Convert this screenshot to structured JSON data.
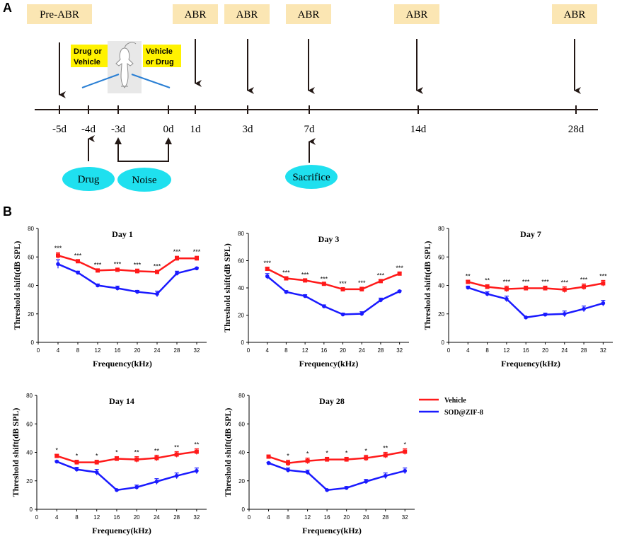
{
  "panel_a": {
    "letter": "A",
    "abr_boxes": [
      {
        "label": "Pre-ABR",
        "day": "-5d"
      },
      {
        "label": "ABR",
        "day": "1d"
      },
      {
        "label": "ABR",
        "day": "3d"
      },
      {
        "label": "ABR",
        "day": "7d"
      },
      {
        "label": "ABR",
        "day": "14d"
      },
      {
        "label": "ABR",
        "day": "28d"
      }
    ],
    "timeline_days": [
      "-5d",
      "-4d",
      "-3d",
      "0d",
      "1d",
      "3d",
      "7d",
      "14d",
      "28d"
    ],
    "injection_label_left": [
      "Drug or",
      "Vehicle"
    ],
    "injection_label_right": [
      "Vehicle",
      "or Drug"
    ],
    "events": {
      "drug": "Drug",
      "noise": "Noise",
      "sacrifice": "Sacrifice"
    },
    "colors": {
      "box": "#fbe6b3",
      "yellow": "#fff200",
      "cyan": "#1fe0ef",
      "needle": "#2a7fd4"
    }
  },
  "panel_b": {
    "letter": "B",
    "legend": {
      "vehicle": "Vehicle",
      "sod": "SOD@ZIF-8"
    },
    "colors": {
      "vehicle": "#ff1a1a",
      "sod": "#1a1aff"
    }
  },
  "chart_data": [
    {
      "type": "line",
      "title": "Day 1",
      "xlabel": "Frequency(kHz)",
      "ylabel": "Threshold shift(dB SPL)",
      "xlim": [
        0,
        34
      ],
      "ylim": [
        0,
        80
      ],
      "xticks": [
        0,
        4,
        8,
        12,
        16,
        20,
        24,
        28,
        32
      ],
      "yticks": [
        0,
        20,
        40,
        60,
        80
      ],
      "x": [
        4,
        8,
        12,
        16,
        20,
        24,
        28,
        32
      ],
      "series": [
        {
          "name": "Vehicle",
          "values": [
            61,
            57,
            50.5,
            51,
            50,
            49.5,
            59,
            59
          ],
          "errors": [
            2,
            1,
            1,
            1,
            1.5,
            1,
            1.5,
            1.5
          ]
        },
        {
          "name": "SOD@ZIF-8",
          "values": [
            55,
            49,
            40,
            38,
            35.5,
            34,
            48.5,
            52
          ],
          "errors": [
            3,
            1,
            1,
            1.5,
            1,
            2,
            1.5,
            0.5
          ]
        }
      ],
      "significance": [
        "***",
        "***",
        "***",
        "***",
        "***",
        "***",
        "***",
        "***"
      ]
    },
    {
      "type": "line",
      "title": "Day 3",
      "xlabel": "Frequency(kHz)",
      "ylabel": "Threshold shift(dB SPL)",
      "xlim": [
        0,
        34
      ],
      "ylim": [
        0,
        80
      ],
      "xticks": [
        0,
        4,
        8,
        12,
        16,
        20,
        24,
        28,
        32
      ],
      "yticks": [
        0,
        20,
        40,
        60,
        80
      ],
      "x": [
        4,
        8,
        12,
        16,
        20,
        24,
        28,
        32
      ],
      "series": [
        {
          "name": "Vehicle",
          "values": [
            54,
            47,
            45.5,
            43,
            39,
            39,
            45,
            50.5
          ],
          "errors": [
            1,
            1,
            1,
            0.5,
            1,
            1.5,
            1,
            1
          ]
        },
        {
          "name": "SOD@ZIF-8",
          "values": [
            48.5,
            37,
            34,
            26.5,
            20.5,
            21,
            31,
            37.5
          ],
          "errors": [
            2,
            1,
            1,
            1,
            1,
            1.5,
            1.5,
            0.5
          ]
        }
      ],
      "significance": [
        "***",
        "***",
        "***",
        "***",
        "***",
        "***",
        "***",
        "***"
      ]
    },
    {
      "type": "line",
      "title": "Day 7",
      "xlabel": "Frequency(kHz)",
      "ylabel": "Threshold shift(dB SPL)",
      "xlim": [
        0,
        34
      ],
      "ylim": [
        0,
        80
      ],
      "xticks": [
        0,
        4,
        8,
        12,
        16,
        20,
        24,
        28,
        32
      ],
      "yticks": [
        0,
        20,
        40,
        60,
        80
      ],
      "x": [
        4,
        8,
        12,
        16,
        20,
        24,
        28,
        32
      ],
      "series": [
        {
          "name": "Vehicle",
          "values": [
            42.5,
            39,
            37.5,
            38,
            38,
            37,
            39,
            41.5
          ],
          "errors": [
            1,
            1.5,
            2,
            1.5,
            1.5,
            2,
            2,
            2
          ]
        },
        {
          "name": "SOD@ZIF-8",
          "values": [
            38.5,
            34,
            30.5,
            17.5,
            19.5,
            20,
            23.5,
            27.5
          ],
          "errors": [
            1,
            1.5,
            2,
            0.5,
            1,
            2,
            2,
            2
          ]
        }
      ],
      "significance": [
        "**",
        "**",
        "***",
        "***",
        "***",
        "***",
        "***",
        "***"
      ]
    },
    {
      "type": "line",
      "title": "Day 14",
      "xlabel": "Frequency(kHz)",
      "ylabel": "Threshold shift(dB SPL)",
      "xlim": [
        0,
        34
      ],
      "ylim": [
        0,
        80
      ],
      "xticks": [
        0,
        4,
        8,
        12,
        16,
        20,
        24,
        28,
        32
      ],
      "yticks": [
        0,
        20,
        40,
        60,
        80
      ],
      "x": [
        4,
        8,
        12,
        16,
        20,
        24,
        28,
        32
      ],
      "series": [
        {
          "name": "Vehicle",
          "values": [
            37.5,
            33,
            33,
            35.5,
            35,
            36,
            38.5,
            40.5
          ],
          "errors": [
            1,
            1.5,
            1.5,
            1.5,
            2,
            2,
            2,
            2
          ]
        },
        {
          "name": "SOD@ZIF-8",
          "values": [
            33.5,
            28,
            26,
            13.5,
            15.5,
            19.5,
            23.5,
            27
          ],
          "errors": [
            0.5,
            1.5,
            2,
            0.5,
            1.5,
            2,
            2,
            2
          ]
        }
      ],
      "significance": [
        "*",
        "*",
        "*",
        "*",
        "**",
        "**",
        "**",
        "**"
      ]
    },
    {
      "type": "line",
      "title": "Day 28",
      "xlabel": "Frequency(kHz)",
      "ylabel": "Threshold shift(dB SPL)",
      "xlim": [
        0,
        34
      ],
      "ylim": [
        0,
        80
      ],
      "xticks": [
        0,
        4,
        8,
        12,
        16,
        20,
        24,
        28,
        32
      ],
      "yticks": [
        0,
        20,
        40,
        60,
        80
      ],
      "x": [
        4,
        8,
        12,
        16,
        20,
        24,
        28,
        32
      ],
      "series": [
        {
          "name": "Vehicle",
          "values": [
            37,
            32.5,
            34,
            35,
            35,
            36,
            38,
            40.5
          ],
          "errors": [
            1,
            2,
            2,
            1.5,
            1.5,
            2,
            2,
            2
          ]
        },
        {
          "name": "SOD@ZIF-8",
          "values": [
            32.5,
            27.5,
            26,
            13.5,
            15,
            19.5,
            23.5,
            27
          ],
          "errors": [
            0.5,
            1.5,
            1.5,
            0.5,
            1,
            1.5,
            2,
            2
          ]
        }
      ],
      "significance": [
        "",
        "*",
        "*",
        "*",
        "*",
        "*",
        "**",
        "*"
      ]
    }
  ]
}
